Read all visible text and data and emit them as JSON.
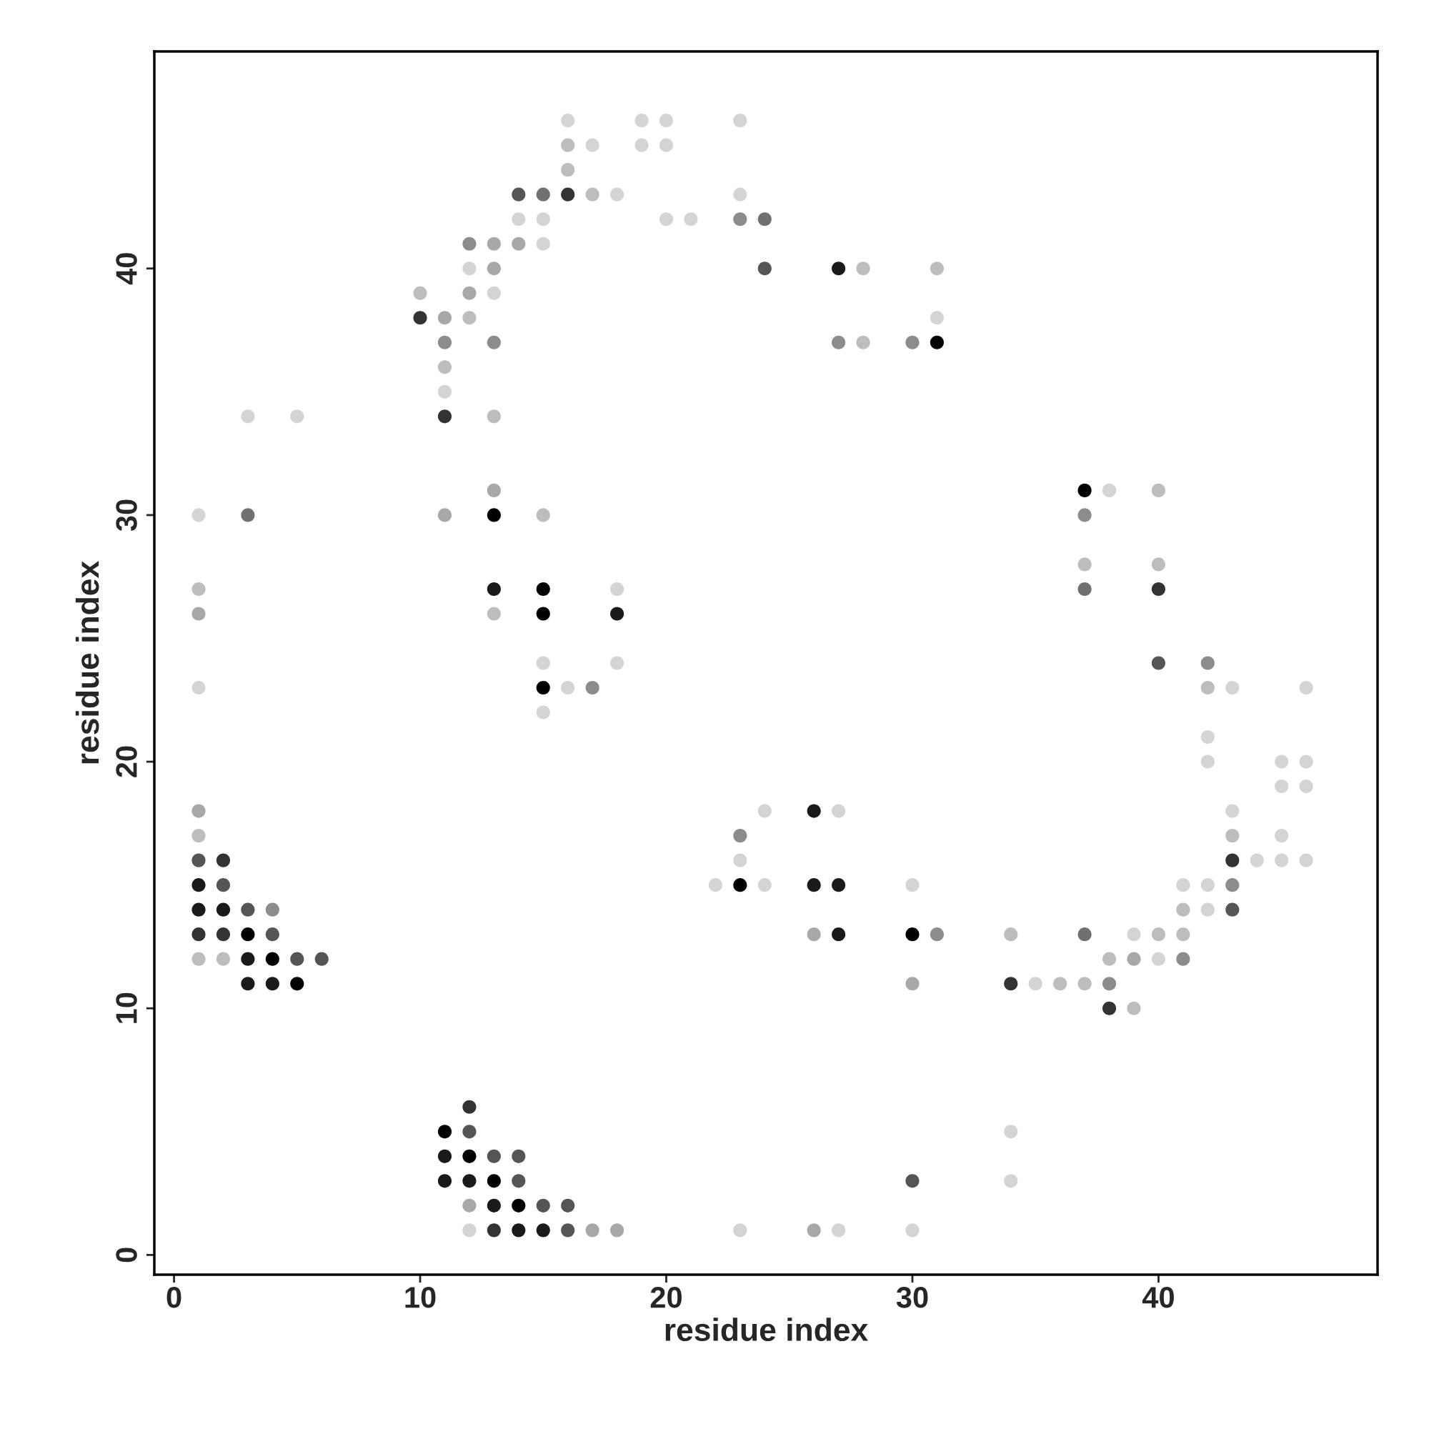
{
  "chart_data": {
    "type": "scatter",
    "xlabel": "residue index",
    "ylabel": "residue index",
    "xlim": [
      -0.8,
      48.9
    ],
    "ylim": [
      -0.8,
      48.8
    ],
    "xticks": [
      0,
      10,
      20,
      30,
      40
    ],
    "yticks": [
      0,
      10,
      20,
      30,
      40
    ],
    "grid": false,
    "marker": "circle",
    "series": [
      {
        "x": [
          1,
          1,
          1,
          1,
          1,
          1,
          1,
          1,
          1,
          1,
          1,
          2,
          2,
          2,
          2,
          2,
          3,
          3,
          3,
          3,
          3,
          3,
          4,
          4,
          4,
          4,
          5,
          5,
          5,
          6,
          10,
          10,
          11,
          11,
          11,
          11,
          11,
          11,
          11,
          11,
          11,
          12,
          12,
          12,
          12,
          12,
          12,
          12,
          12,
          12,
          12,
          13,
          13,
          13,
          13,
          13,
          13,
          13,
          13,
          13,
          13,
          13,
          13,
          13,
          14,
          14,
          14,
          14,
          14,
          14,
          14,
          15,
          15,
          15,
          15,
          15,
          15,
          15,
          15,
          15,
          15,
          15,
          16,
          16,
          16,
          16,
          16,
          16,
          16,
          17,
          17,
          17,
          17,
          18,
          18,
          18,
          18,
          18,
          19,
          19,
          20,
          20,
          20,
          21,
          22,
          23,
          23,
          23,
          23,
          23,
          23,
          23,
          24,
          24,
          24,
          24,
          26,
          26,
          26,
          26,
          27,
          27,
          27,
          27,
          27,
          27,
          28,
          28,
          30,
          30,
          30,
          30,
          30,
          30,
          31,
          31,
          31,
          31,
          34,
          34,
          34,
          34,
          35,
          36,
          37,
          37,
          37,
          37,
          37,
          37,
          38,
          38,
          38,
          38,
          39,
          39,
          39,
          40,
          40,
          40,
          40,
          40,
          40,
          41,
          41,
          41,
          41,
          42,
          42,
          42,
          42,
          42,
          42,
          43,
          43,
          43,
          43,
          43,
          43,
          44,
          45,
          45,
          45,
          45,
          46,
          46,
          46,
          46
        ],
        "values": [
          30,
          27,
          26,
          23,
          18,
          17,
          16,
          15,
          14,
          13,
          12,
          16,
          15,
          14,
          13,
          12,
          34,
          30,
          14,
          13,
          12,
          11,
          14,
          13,
          12,
          11,
          34,
          12,
          11,
          12,
          39,
          38,
          38,
          37,
          36,
          35,
          34,
          30,
          5,
          4,
          3,
          41,
          40,
          39,
          38,
          6,
          5,
          4,
          3,
          2,
          1,
          41,
          40,
          39,
          37,
          34,
          31,
          30,
          27,
          26,
          4,
          3,
          2,
          1,
          43,
          42,
          41,
          4,
          3,
          2,
          1,
          43,
          42,
          41,
          30,
          27,
          26,
          24,
          23,
          22,
          2,
          1,
          46,
          45,
          44,
          43,
          23,
          2,
          1,
          45,
          43,
          23,
          1,
          43,
          27,
          26,
          24,
          1,
          46,
          45,
          46,
          45,
          42,
          42,
          15,
          46,
          43,
          42,
          17,
          16,
          15,
          1,
          42,
          40,
          18,
          15,
          18,
          15,
          13,
          1,
          40,
          37,
          18,
          15,
          13,
          1,
          40,
          37,
          37,
          15,
          13,
          11,
          3,
          1,
          40,
          38,
          37,
          13,
          13,
          11,
          5,
          3,
          11,
          11,
          31,
          30,
          28,
          27,
          13,
          11,
          31,
          12,
          11,
          10,
          13,
          12,
          10,
          31,
          28,
          27,
          24,
          13,
          12,
          15,
          14,
          13,
          12,
          24,
          23,
          21,
          20,
          15,
          14,
          23,
          18,
          17,
          16,
          15,
          14,
          16,
          20,
          19,
          17,
          16,
          23,
          20,
          19,
          16
        ],
        "colors": [
          "#d4d4d4",
          "#bdbdbd",
          "#a8a8a8",
          "#d4d4d4",
          "#a8a8a8",
          "#bdbdbd",
          "#555555",
          "#1a1a1a",
          "#1a1a1a",
          "#333333",
          "#bdbdbd",
          "#333333",
          "#555555",
          "#1a1a1a",
          "#333333",
          "#bdbdbd",
          "#d4d4d4",
          "#707070",
          "#555555",
          "#000000",
          "#1a1a1a",
          "#1a1a1a",
          "#8c8c8c",
          "#555555",
          "#000000",
          "#1a1a1a",
          "#d4d4d4",
          "#555555",
          "#000000",
          "#555555",
          "#bdbdbd",
          "#333333",
          "#a8a8a8",
          "#8c8c8c",
          "#bdbdbd",
          "#d4d4d4",
          "#333333",
          "#a8a8a8",
          "#000000",
          "#1a1a1a",
          "#1a1a1a",
          "#8c8c8c",
          "#d4d4d4",
          "#a8a8a8",
          "#bdbdbd",
          "#333333",
          "#555555",
          "#000000",
          "#1a1a1a",
          "#a8a8a8",
          "#d4d4d4",
          "#a8a8a8",
          "#a8a8a8",
          "#d4d4d4",
          "#8c8c8c",
          "#bdbdbd",
          "#a8a8a8",
          "#000000",
          "#1a1a1a",
          "#bdbdbd",
          "#555555",
          "#000000",
          "#1a1a1a",
          "#333333",
          "#555555",
          "#d4d4d4",
          "#a8a8a8",
          "#555555",
          "#555555",
          "#000000",
          "#1a1a1a",
          "#707070",
          "#d4d4d4",
          "#d4d4d4",
          "#bdbdbd",
          "#000000",
          "#000000",
          "#d4d4d4",
          "#000000",
          "#d4d4d4",
          "#555555",
          "#1a1a1a",
          "#d4d4d4",
          "#bdbdbd",
          "#bdbdbd",
          "#333333",
          "#d4d4d4",
          "#555555",
          "#555555",
          "#d4d4d4",
          "#bdbdbd",
          "#8c8c8c",
          "#a8a8a8",
          "#d4d4d4",
          "#d4d4d4",
          "#1a1a1a",
          "#d4d4d4",
          "#a8a8a8",
          "#d4d4d4",
          "#d4d4d4",
          "#d4d4d4",
          "#d4d4d4",
          "#d4d4d4",
          "#d4d4d4",
          "#d4d4d4",
          "#d4d4d4",
          "#d4d4d4",
          "#8c8c8c",
          "#8c8c8c",
          "#d4d4d4",
          "#000000",
          "#d4d4d4",
          "#707070",
          "#555555",
          "#d4d4d4",
          "#d4d4d4",
          "#1a1a1a",
          "#1a1a1a",
          "#a8a8a8",
          "#a8a8a8",
          "#1a1a1a",
          "#8c8c8c",
          "#d4d4d4",
          "#1a1a1a",
          "#1a1a1a",
          "#d4d4d4",
          "#bdbdbd",
          "#bdbdbd",
          "#8c8c8c",
          "#d4d4d4",
          "#000000",
          "#a8a8a8",
          "#555555",
          "#d4d4d4",
          "#bdbdbd",
          "#d4d4d4",
          "#000000",
          "#8c8c8c",
          "#bdbdbd",
          "#333333",
          "#d4d4d4",
          "#d4d4d4",
          "#d4d4d4",
          "#bdbdbd",
          "#000000",
          "#8c8c8c",
          "#bdbdbd",
          "#707070",
          "#707070",
          "#bdbdbd",
          "#d4d4d4",
          "#bdbdbd",
          "#8c8c8c",
          "#333333",
          "#d4d4d4",
          "#a8a8a8",
          "#bdbdbd",
          "#bdbdbd",
          "#bdbdbd",
          "#333333",
          "#555555",
          "#bdbdbd",
          "#d4d4d4",
          "#d4d4d4",
          "#bdbdbd",
          "#bdbdbd",
          "#8c8c8c",
          "#8c8c8c",
          "#bdbdbd",
          "#d4d4d4",
          "#d4d4d4",
          "#d4d4d4",
          "#d4d4d4",
          "#d4d4d4",
          "#d4d4d4",
          "#bdbdbd",
          "#333333",
          "#8c8c8c",
          "#555555",
          "#d4d4d4",
          "#d4d4d4",
          "#d4d4d4",
          "#d4d4d4",
          "#d4d4d4",
          "#d4d4d4",
          "#d4d4d4",
          "#d4d4d4",
          "#d4d4d4"
        ]
      }
    ]
  }
}
